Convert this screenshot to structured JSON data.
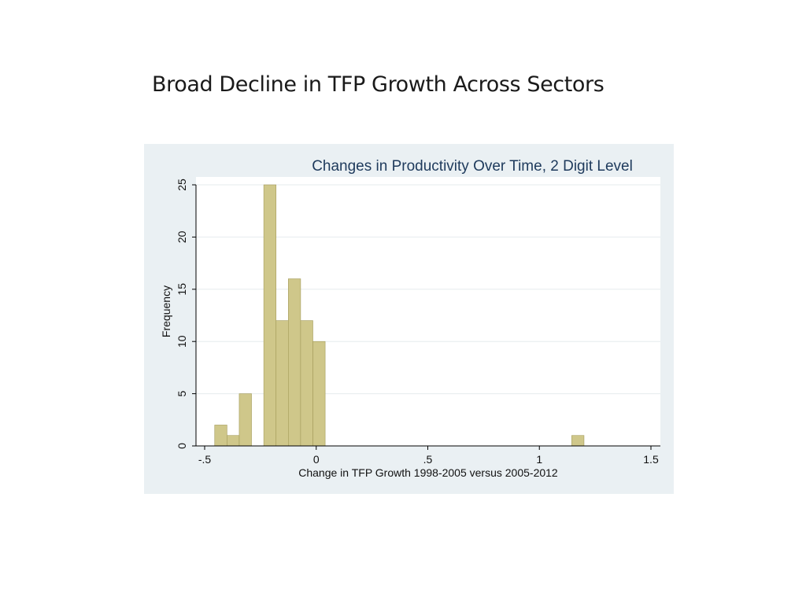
{
  "slide": {
    "title": "Broad Decline in TFP Growth Across Sectors"
  },
  "colors": {
    "bar_fill": "#cfc78a",
    "bar_stroke": "#a39b5a",
    "plot_bg": "#ffffff",
    "frame_bg": "#eaf0f3",
    "title": "#1e3a5c"
  },
  "chart_data": {
    "type": "bar",
    "title": "Changes in Productivity Over Time, 2 Digit Level",
    "xlabel": "Change in TFP Growth 1998-2005 versus 2005-2012",
    "ylabel": "Frequency",
    "xlim": [
      -0.5,
      1.5
    ],
    "ylim": [
      0,
      25
    ],
    "grid": true,
    "legend": "none",
    "xticks": [
      {
        "value": -0.5,
        "label": "-.5"
      },
      {
        "value": 0,
        "label": "0"
      },
      {
        "value": 0.5,
        "label": ".5"
      },
      {
        "value": 1,
        "label": "1"
      },
      {
        "value": 1.5,
        "label": "1.5"
      }
    ],
    "yticks": [
      {
        "value": 0,
        "label": "0"
      },
      {
        "value": 5,
        "label": "5"
      },
      {
        "value": 10,
        "label": "10"
      },
      {
        "value": 15,
        "label": "15"
      },
      {
        "value": 20,
        "label": "20"
      },
      {
        "value": 25,
        "label": "25"
      }
    ],
    "bins": [
      {
        "x0": -0.455,
        "x1": -0.4,
        "count": 2
      },
      {
        "x0": -0.4,
        "x1": -0.345,
        "count": 1
      },
      {
        "x0": -0.345,
        "x1": -0.29,
        "count": 5
      },
      {
        "x0": -0.235,
        "x1": -0.18,
        "count": 25
      },
      {
        "x0": -0.18,
        "x1": -0.125,
        "count": 12
      },
      {
        "x0": -0.125,
        "x1": -0.07,
        "count": 16
      },
      {
        "x0": -0.07,
        "x1": -0.015,
        "count": 12
      },
      {
        "x0": -0.015,
        "x1": 0.04,
        "count": 10
      },
      {
        "x0": 1.145,
        "x1": 1.2,
        "count": 1
      }
    ]
  }
}
